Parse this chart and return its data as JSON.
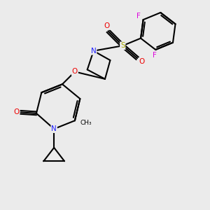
{
  "background_color": "#ebebeb",
  "bond_color": "#000000",
  "atom_colors": {
    "N": "#2020ff",
    "O": "#ee0000",
    "F": "#dd00dd",
    "S": "#aaaa00",
    "C": "#000000"
  }
}
